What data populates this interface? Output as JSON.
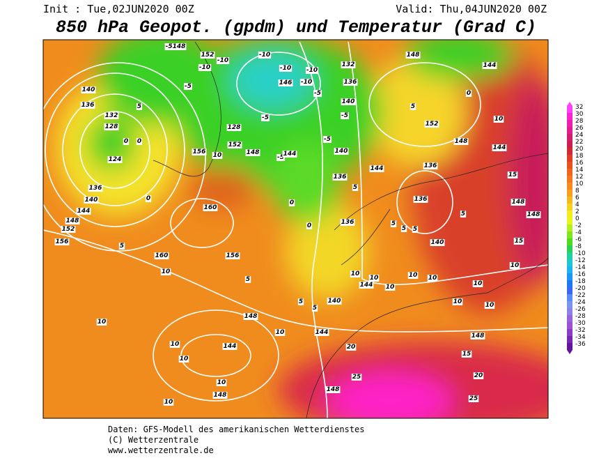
{
  "header": {
    "init": "Init : Tue,02JUN2020 00Z",
    "valid": "Valid: Thu,04JUN2020 00Z",
    "title": "850 hPa Geopot. (gpdm) und Temperatur (Grad C)"
  },
  "map": {
    "contour_labels": [
      "-5148",
      "152",
      "-10",
      "-10",
      "-10",
      "148",
      "132",
      "-10",
      "-10",
      "146",
      "-10",
      "136",
      "144",
      "-5",
      "-5",
      "0",
      "140",
      "136",
      "5",
      "132",
      "140",
      "-5",
      "-5",
      "5",
      "152",
      "10",
      "128",
      "0",
      "0",
      "128",
      "-5",
      "148",
      "144",
      "124",
      "156",
      "10",
      "152",
      "148",
      "-5",
      "144",
      "140",
      "144",
      "136",
      "15",
      "0",
      "136",
      "140",
      "144",
      "148",
      "152",
      "156",
      "160",
      "5",
      "136",
      "5",
      "136",
      "148",
      "148",
      "0",
      "0",
      "136",
      "5",
      "5",
      "5",
      "140",
      "5",
      "15",
      "160",
      "156",
      "10",
      "5",
      "10",
      "10",
      "10",
      "10",
      "144",
      "10",
      "10",
      "10",
      "10",
      "10",
      "5",
      "5",
      "140",
      "10",
      "148",
      "10",
      "144",
      "148",
      "10",
      "144",
      "20",
      "15",
      "10",
      "20",
      "25",
      "10",
      "148",
      "148",
      "10",
      "25"
    ]
  },
  "colorbar": {
    "labels": [
      32,
      30,
      28,
      26,
      24,
      22,
      20,
      18,
      16,
      14,
      12,
      10,
      8,
      6,
      4,
      2,
      0,
      -2,
      -4,
      -6,
      -8,
      -10,
      -12,
      -14,
      -16,
      -18,
      -20,
      -22,
      -24,
      -26,
      -28,
      -30,
      -32,
      -34,
      -36
    ]
  },
  "footer": {
    "lines": [
      "Daten: GFS-Modell des amerikanischen Wetterdienstes",
      "(C) Wetterzentrale",
      "www.wetterzentrale.de"
    ]
  }
}
